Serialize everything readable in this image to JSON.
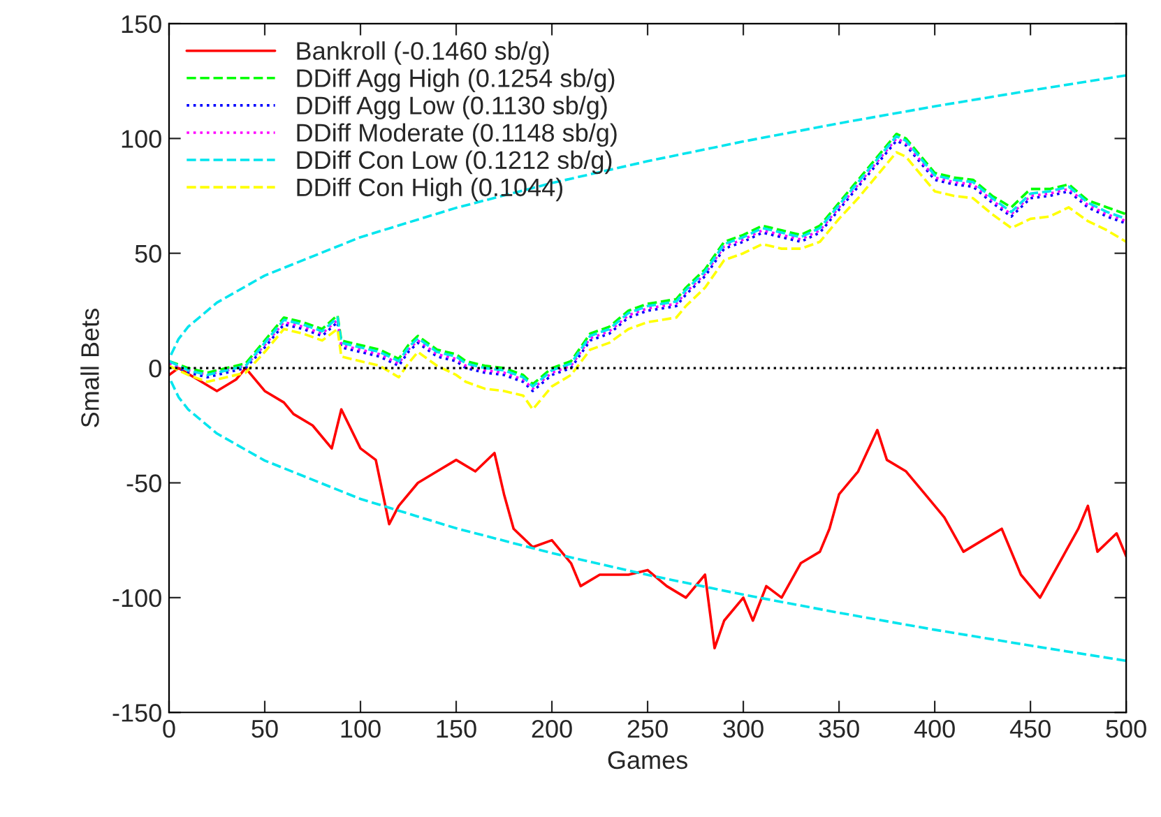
{
  "chart_data": {
    "type": "line",
    "xlabel": "Games",
    "ylabel": "Small Bets",
    "xlim": [
      0,
      500
    ],
    "ylim": [
      -150,
      150
    ],
    "xticks": [
      0,
      50,
      100,
      150,
      200,
      250,
      300,
      350,
      400,
      450,
      500
    ],
    "yticks": [
      -150,
      -100,
      -50,
      0,
      50,
      100,
      150
    ],
    "grid": false,
    "legend": "top left",
    "ref_lines": [
      {
        "axis": "y",
        "value": 0,
        "color": "#000000",
        "line_style": "dotted"
      }
    ],
    "series": [
      {
        "name": "Bankroll (-0.1460 sb/g)",
        "color": "#ff0000",
        "line_style": "solid",
        "x": [
          0,
          5,
          15,
          25,
          35,
          40,
          50,
          60,
          65,
          75,
          85,
          90,
          100,
          108,
          115,
          120,
          130,
          140,
          150,
          160,
          170,
          175,
          180,
          190,
          200,
          210,
          215,
          225,
          240,
          250,
          260,
          270,
          280,
          285,
          290,
          300,
          305,
          312,
          320,
          330,
          340,
          345,
          350,
          360,
          370,
          375,
          385,
          395,
          405,
          415,
          425,
          435,
          445,
          455,
          465,
          475,
          480,
          485,
          495,
          500
        ],
        "values": [
          -3,
          0,
          -5,
          -10,
          -5,
          0,
          -10,
          -15,
          -20,
          -25,
          -35,
          -18,
          -35,
          -40,
          -68,
          -60,
          -50,
          -45,
          -40,
          -45,
          -37,
          -55,
          -70,
          -78,
          -75,
          -85,
          -95,
          -90,
          -90,
          -88,
          -95,
          -100,
          -90,
          -122,
          -110,
          -100,
          -110,
          -95,
          -100,
          -85,
          -80,
          -70,
          -55,
          -45,
          -27,
          -40,
          -45,
          -55,
          -65,
          -80,
          -75,
          -70,
          -90,
          -100,
          -85,
          -70,
          -60,
          -80,
          -72,
          -82
        ]
      },
      {
        "name": "DDiff Agg High (0.1254 sb/g)",
        "color": "#00ff00",
        "line_style": "dashed",
        "x": [
          0,
          10,
          20,
          30,
          40,
          50,
          60,
          70,
          80,
          88,
          90,
          100,
          110,
          120,
          125,
          130,
          140,
          150,
          155,
          165,
          175,
          185,
          190,
          200,
          210,
          220,
          230,
          240,
          250,
          265,
          270,
          280,
          290,
          300,
          310,
          320,
          330,
          340,
          350,
          360,
          370,
          380,
          385,
          395,
          400,
          410,
          420,
          430,
          440,
          450,
          460,
          470,
          480,
          490,
          500
        ],
        "values": [
          3,
          0,
          -2,
          0,
          2,
          12,
          22,
          20,
          17,
          23,
          12,
          10,
          8,
          4,
          10,
          14,
          8,
          6,
          3,
          1,
          0,
          -3,
          -7,
          0,
          3,
          15,
          18,
          25,
          28,
          30,
          35,
          43,
          55,
          58,
          62,
          60,
          58,
          62,
          72,
          82,
          92,
          102,
          100,
          90,
          85,
          83,
          82,
          75,
          70,
          78,
          78,
          80,
          73,
          70,
          67
        ]
      },
      {
        "name": "DDiff Agg Low (0.1130 sb/g)",
        "color": "#0000ff",
        "line_style": "dotted",
        "x": [
          0,
          10,
          20,
          30,
          40,
          50,
          60,
          70,
          80,
          88,
          90,
          100,
          110,
          120,
          125,
          130,
          140,
          150,
          155,
          165,
          175,
          185,
          190,
          200,
          210,
          220,
          230,
          240,
          250,
          265,
          270,
          280,
          290,
          300,
          310,
          320,
          330,
          340,
          350,
          360,
          370,
          380,
          385,
          395,
          400,
          410,
          420,
          430,
          440,
          450,
          460,
          470,
          480,
          490,
          500
        ],
        "values": [
          2,
          -2,
          -4,
          -2,
          0,
          9,
          19,
          17,
          14,
          20,
          9,
          7,
          5,
          1,
          7,
          11,
          5,
          3,
          0,
          -2,
          -3,
          -6,
          -10,
          -3,
          0,
          12,
          15,
          22,
          25,
          27,
          32,
          40,
          52,
          55,
          59,
          57,
          55,
          59,
          69,
          79,
          89,
          99,
          97,
          87,
          82,
          80,
          79,
          72,
          66,
          74,
          75,
          77,
          70,
          66,
          63
        ]
      },
      {
        "name": "DDiff Moderate (0.1148 sb/g)",
        "color": "#ff00ff",
        "line_style": "dotted",
        "x": [
          0,
          10,
          20,
          30,
          40,
          50,
          60,
          70,
          80,
          88,
          90,
          100,
          110,
          120,
          125,
          130,
          140,
          150,
          155,
          165,
          175,
          185,
          190,
          200,
          210,
          220,
          230,
          240,
          250,
          265,
          270,
          280,
          290,
          300,
          310,
          320,
          330,
          340,
          350,
          360,
          370,
          380,
          385,
          395,
          400,
          410,
          420,
          430,
          440,
          450,
          460,
          470,
          480,
          490,
          500
        ],
        "values": [
          2,
          -1,
          -3,
          -1,
          1,
          10,
          20,
          18,
          15,
          21,
          10,
          8,
          6,
          2,
          8,
          12,
          6,
          4,
          1,
          -1,
          -2,
          -5,
          -9,
          -2,
          1,
          13,
          16,
          23,
          26,
          28,
          33,
          41,
          53,
          56,
          60,
          58,
          56,
          60,
          70,
          80,
          90,
          100,
          98,
          88,
          83,
          81,
          80,
          73,
          67,
          75,
          76,
          78,
          71,
          67,
          64
        ]
      },
      {
        "name": "DDiff Con Low (0.1212 sb/g)",
        "color": "#00e5ee",
        "line_style": "dashed",
        "x": [
          0,
          10,
          20,
          30,
          40,
          50,
          60,
          70,
          80,
          88,
          90,
          100,
          110,
          120,
          125,
          130,
          140,
          150,
          155,
          165,
          175,
          185,
          190,
          200,
          210,
          220,
          230,
          240,
          250,
          265,
          270,
          280,
          290,
          300,
          310,
          320,
          330,
          340,
          350,
          360,
          370,
          380,
          385,
          395,
          400,
          410,
          420,
          430,
          440,
          450,
          460,
          470,
          480,
          490,
          500
        ],
        "values": [
          3,
          -1,
          -3,
          -1,
          1,
          11,
          21,
          19,
          16,
          22,
          11,
          9,
          7,
          3,
          9,
          13,
          7,
          5,
          2,
          0,
          -1,
          -4,
          -8,
          -1,
          2,
          14,
          17,
          24,
          27,
          29,
          34,
          42,
          54,
          57,
          61,
          59,
          57,
          61,
          71,
          81,
          91,
          101,
          99,
          89,
          84,
          82,
          81,
          74,
          68,
          76,
          77,
          79,
          72,
          68,
          65
        ]
      },
      {
        "name": "DDiff Con High (0.1044)",
        "color": "#ffff00",
        "line_style": "dashed",
        "x": [
          0,
          10,
          20,
          30,
          40,
          50,
          60,
          70,
          80,
          88,
          90,
          100,
          110,
          120,
          125,
          130,
          140,
          150,
          155,
          165,
          175,
          185,
          190,
          200,
          210,
          220,
          230,
          240,
          250,
          265,
          270,
          280,
          290,
          300,
          310,
          320,
          330,
          340,
          350,
          360,
          370,
          380,
          385,
          395,
          400,
          410,
          420,
          430,
          440,
          450,
          460,
          470,
          480,
          490,
          500
        ],
        "values": [
          1,
          -3,
          -6,
          -4,
          -2,
          7,
          17,
          15,
          12,
          17,
          5,
          3,
          1,
          -4,
          2,
          7,
          1,
          -3,
          -6,
          -9,
          -10,
          -12,
          -18,
          -8,
          -3,
          8,
          11,
          17,
          20,
          22,
          27,
          35,
          47,
          50,
          54,
          52,
          52,
          55,
          65,
          74,
          84,
          94,
          92,
          82,
          77,
          75,
          74,
          67,
          61,
          65,
          66,
          70,
          64,
          60,
          55
        ]
      },
      {
        "color": "#00e5ee",
        "line_style": "dashed",
        "x": [
          1,
          5,
          10,
          25,
          50,
          100,
          150,
          200,
          250,
          300,
          350,
          400,
          450,
          500
        ],
        "values": [
          5.7,
          12.7,
          18,
          28.5,
          40.3,
          57,
          69.8,
          80.6,
          90.1,
          98.7,
          106.6,
          114,
          120.9,
          127.5
        ]
      },
      {
        "color": "#00e5ee",
        "line_style": "dashed",
        "x": [
          1,
          5,
          10,
          25,
          50,
          100,
          150,
          200,
          250,
          300,
          350,
          400,
          450,
          500
        ],
        "values": [
          -5.7,
          -12.7,
          -18,
          -28.5,
          -40.3,
          -57,
          -69.8,
          -80.6,
          -90.1,
          -98.7,
          -106.6,
          -114,
          -120.9,
          -127.5
        ]
      }
    ]
  }
}
